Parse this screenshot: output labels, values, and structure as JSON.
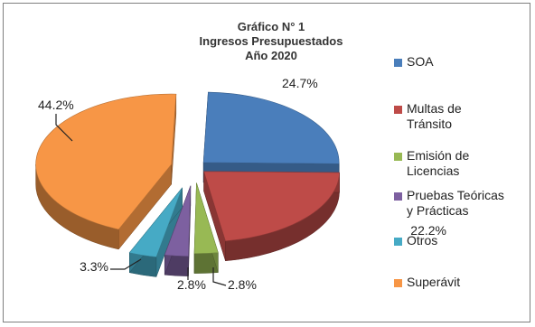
{
  "chart_data": {
    "type": "pie",
    "title": [
      "Gráfico N° 1",
      "Ingresos Presupuestados",
      "Año 2020"
    ],
    "categories": [
      "SOA",
      "Multas de Tránsito",
      "Emisión de Licencias",
      "Pruebas Teóricas y Prácticas",
      "Otros",
      "Superávit"
    ],
    "values": [
      24.7,
      22.2,
      2.8,
      2.8,
      3.3,
      44.2
    ],
    "labels": [
      "24.7%",
      "22.2%",
      "2.8%",
      "2.8%",
      "3.3%",
      "44.2%"
    ],
    "legend_labels": [
      "SOA",
      "Multas de\nTránsito",
      "Emisión de\nLicencias",
      "Pruebas Teóricas\ny Prácticas",
      "Otros",
      "Superávit"
    ],
    "colors": [
      "#4a7ebb",
      "#be4b48",
      "#98b954",
      "#7d60a0",
      "#46aac5",
      "#f79646"
    ],
    "legend_position": "right",
    "style": "3d-exploded"
  }
}
